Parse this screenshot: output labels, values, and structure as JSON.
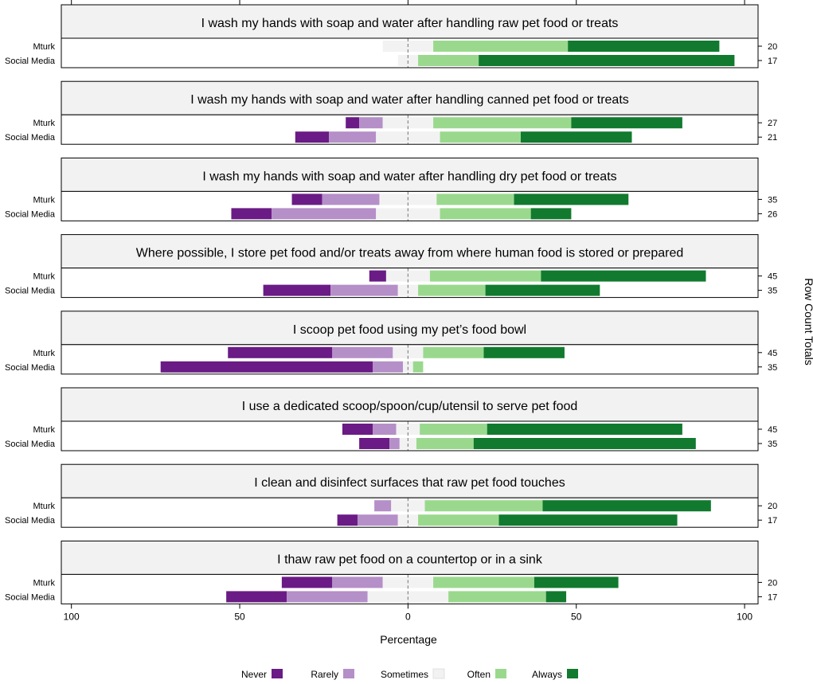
{
  "chart_data": {
    "type": "diverging-stacked-bar",
    "xlabel": "Percentage",
    "ylabel_right": "Row Count Totals",
    "xlim": [
      -103,
      104
    ],
    "x_ticks": [
      -100,
      -50,
      0,
      50,
      100
    ],
    "x_tick_labels": [
      "100",
      "50",
      "0",
      "50",
      "100"
    ],
    "categories": [
      "Never",
      "Rarely",
      "Sometimes",
      "Often",
      "Always"
    ],
    "colors": {
      "Never": "#6a1b85",
      "Rarely": "#b58fc8",
      "Sometimes": "#f2f2f2",
      "Often": "#9ad98d",
      "Always": "#117a2e"
    },
    "panels": [
      {
        "title": "I wash my hands with soap and water after handling raw pet food or treats",
        "rows": [
          {
            "label": "Mturk",
            "total": "20",
            "values": [
              0,
              0,
              15,
              40,
              45
            ]
          },
          {
            "label": "Social Media",
            "total": "17",
            "values": [
              0,
              0,
              6,
              18,
              76
            ]
          }
        ]
      },
      {
        "title": "I wash my hands with soap and water after handling canned pet food or treats",
        "rows": [
          {
            "label": "Mturk",
            "total": "27",
            "values": [
              4,
              7,
              15,
              41,
              33
            ]
          },
          {
            "label": "Social Media",
            "total": "21",
            "values": [
              10,
              14,
              19,
              24,
              33
            ]
          }
        ]
      },
      {
        "title": "I wash my hands with soap and water after handling dry pet food or treats",
        "rows": [
          {
            "label": "Mturk",
            "total": "35",
            "values": [
              9,
              17,
              17,
              23,
              34
            ]
          },
          {
            "label": "Social Media",
            "total": "26",
            "values": [
              12,
              31,
              19,
              27,
              12
            ]
          }
        ]
      },
      {
        "title": "Where possible, I store pet food and/or treats away from where human food is stored or prepared",
        "rows": [
          {
            "label": "Mturk",
            "total": "45",
            "values": [
              5,
              0,
              13,
              33,
              49
            ]
          },
          {
            "label": "Social Media",
            "total": "35",
            "values": [
              20,
              20,
              6,
              20,
              34
            ]
          }
        ]
      },
      {
        "title": "I scoop pet food using my pet’s food bowl",
        "rows": [
          {
            "label": "Mturk",
            "total": "45",
            "values": [
              31,
              18,
              9,
              18,
              24
            ]
          },
          {
            "label": "Social Media",
            "total": "35",
            "values": [
              63,
              9,
              3,
              3,
              0
            ]
          }
        ]
      },
      {
        "title": "I use a dedicated scoop/spoon/cup/utensil to serve pet food",
        "rows": [
          {
            "label": "Mturk",
            "total": "45",
            "values": [
              9,
              7,
              7,
              20,
              58
            ]
          },
          {
            "label": "Social Media",
            "total": "35",
            "values": [
              9,
              3,
              5,
              17,
              66
            ]
          }
        ]
      },
      {
        "title": "I clean and disinfect surfaces that raw pet food touches",
        "rows": [
          {
            "label": "Mturk",
            "total": "20",
            "values": [
              0,
              5,
              10,
              35,
              50
            ]
          },
          {
            "label": "Social Media",
            "total": "17",
            "values": [
              6,
              12,
              6,
              24,
              53
            ]
          }
        ]
      },
      {
        "title": "I thaw raw pet food on a countertop or in a sink",
        "rows": [
          {
            "label": "Mturk",
            "total": "20",
            "values": [
              15,
              15,
              15,
              30,
              25
            ]
          },
          {
            "label": "Social Media",
            "total": "17",
            "values": [
              18,
              24,
              24,
              29,
              6
            ]
          }
        ]
      }
    ]
  }
}
